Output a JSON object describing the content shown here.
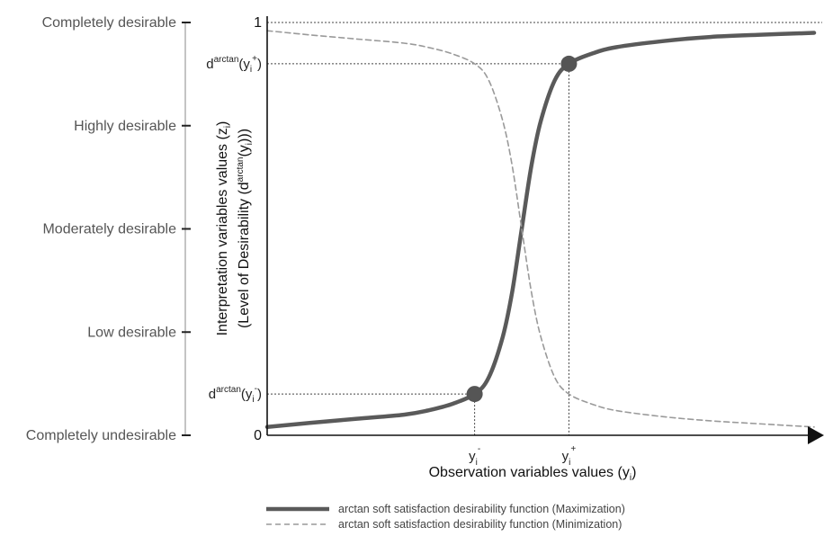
{
  "chart_data": {
    "type": "line",
    "title": "",
    "xlabel": "Observation variables values (y",
    "xlabel_sub": "i",
    "xlabel_close": ")",
    "ylabel_line1": "Interpretation variables values (z",
    "ylabel_line1_sub": "i",
    "ylabel_line1_close": ")",
    "ylabel_line2": "(Level of Desirability (d",
    "ylabel_line2_sup": "arctan",
    "ylabel_line2_mid": "(y",
    "ylabel_line2_sub": "i",
    "ylabel_line2_close": ")))",
    "ylim": [
      0,
      1
    ],
    "y_ticks": [
      {
        "value": 0,
        "label": "0"
      },
      {
        "value": 1,
        "label": "1"
      }
    ],
    "desirability_levels": [
      {
        "value": 1.0,
        "label": "Completely desirable"
      },
      {
        "value": 0.75,
        "label": "Highly desirable"
      },
      {
        "value": 0.5,
        "label": "Moderately desirable"
      },
      {
        "value": 0.25,
        "label": "Low desirable"
      },
      {
        "value": 0.0,
        "label": "Completely undesirable"
      }
    ],
    "x_markers": [
      {
        "name": "y_minus",
        "base": "y",
        "sub": "i",
        "sup": "-",
        "x": -1,
        "y": 0.1
      },
      {
        "name": "y_plus",
        "base": "y",
        "sub": "i",
        "sup": "+",
        "x": 1,
        "y": 0.9
      }
    ],
    "y_markers": [
      {
        "name": "d_minus",
        "base": "d",
        "sup": "arctan",
        "open": "(y",
        "sub": "i",
        "sup2": "-",
        "close": ")",
        "y": 0.1
      },
      {
        "name": "d_plus",
        "base": "d",
        "sup": "arctan",
        "open": "(y",
        "sub": "i",
        "sup2": "+",
        "close": ")",
        "y": 0.9
      }
    ],
    "series": [
      {
        "name": "arctan soft satisfaction desirability function (Maximization)",
        "style": "solid",
        "color": "#5a5a5a",
        "x": [
          -5.4,
          -4.5,
          -3.5,
          -2.5,
          -2.0,
          -1.5,
          -1.0,
          -0.7,
          -0.4,
          -0.2,
          0,
          0.2,
          0.4,
          0.7,
          1.0,
          1.5,
          2.0,
          3.0,
          4.0,
          5.0,
          6.2
        ],
        "y": [
          0.02,
          0.03,
          0.04,
          0.05,
          0.06,
          0.075,
          0.1,
          0.14,
          0.24,
          0.35,
          0.5,
          0.65,
          0.76,
          0.86,
          0.9,
          0.925,
          0.94,
          0.955,
          0.965,
          0.97,
          0.975
        ]
      },
      {
        "name": "arctan soft satisfaction desirability function (Minimization)",
        "style": "dashed",
        "color": "#9a9a9a",
        "x": [
          -5.4,
          -4.5,
          -3.5,
          -2.5,
          -2.0,
          -1.5,
          -1.0,
          -0.7,
          -0.4,
          -0.2,
          0,
          0.2,
          0.4,
          0.7,
          1.0,
          1.5,
          2.0,
          3.0,
          4.0,
          5.0,
          6.2
        ],
        "y": [
          0.98,
          0.97,
          0.96,
          0.95,
          0.94,
          0.925,
          0.9,
          0.86,
          0.76,
          0.65,
          0.5,
          0.35,
          0.24,
          0.14,
          0.1,
          0.075,
          0.06,
          0.045,
          0.035,
          0.028,
          0.02
        ]
      }
    ],
    "xlim": [
      -5.4,
      6.2
    ],
    "grid": false,
    "legend_position": "bottom-center",
    "colors": {
      "max_line": "#5a5a5a",
      "min_line": "#9a9a9a",
      "axis": "#111111",
      "marker": "#555555"
    }
  }
}
